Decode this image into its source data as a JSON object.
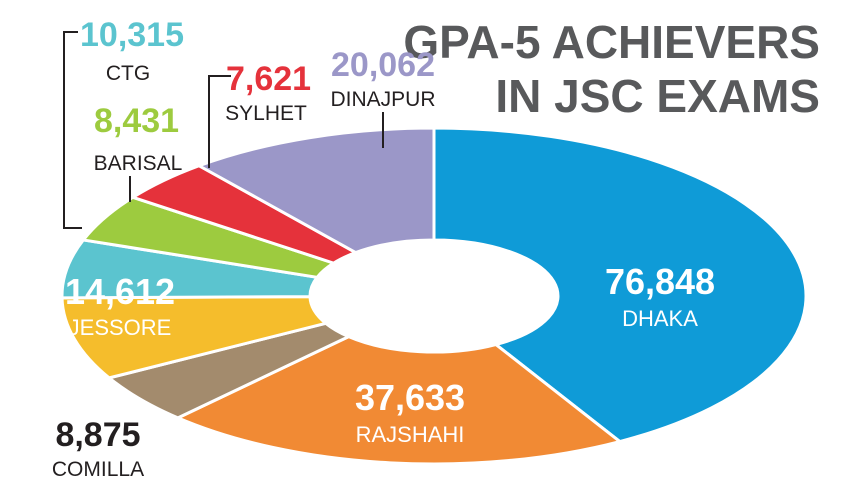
{
  "title_lines": [
    "GPA-5 ACHIEVERS",
    "IN JSC EXAMS"
  ],
  "chart_data": {
    "type": "pie",
    "variant": "donut",
    "title": "GPA-5 ACHIEVERS IN JSC EXAMS",
    "series": [
      {
        "label": "DHAKA",
        "value": 76848,
        "value_text": "76,848",
        "color": "#0f9bd7"
      },
      {
        "label": "RAJSHAHI",
        "value": 37633,
        "value_text": "37,633",
        "color": "#f18a34"
      },
      {
        "label": "COMILLA",
        "value": 8875,
        "value_text": "8,875",
        "color": "#a38b6d"
      },
      {
        "label": "JESSORE",
        "value": 14612,
        "value_text": "14,612",
        "color": "#f5bd2c"
      },
      {
        "label": "CTG",
        "value": 10315,
        "value_text": "10,315",
        "color": "#5bc4cf"
      },
      {
        "label": "BARISAL",
        "value": 8431,
        "value_text": "8,431",
        "color": "#9dcb3f"
      },
      {
        "label": "SYLHET",
        "value": 7621,
        "value_text": "7,621",
        "color": "#e5323b"
      },
      {
        "label": "DINAJPUR",
        "value": 20062,
        "value_text": "20,062",
        "color": "#9b97c8"
      }
    ]
  }
}
